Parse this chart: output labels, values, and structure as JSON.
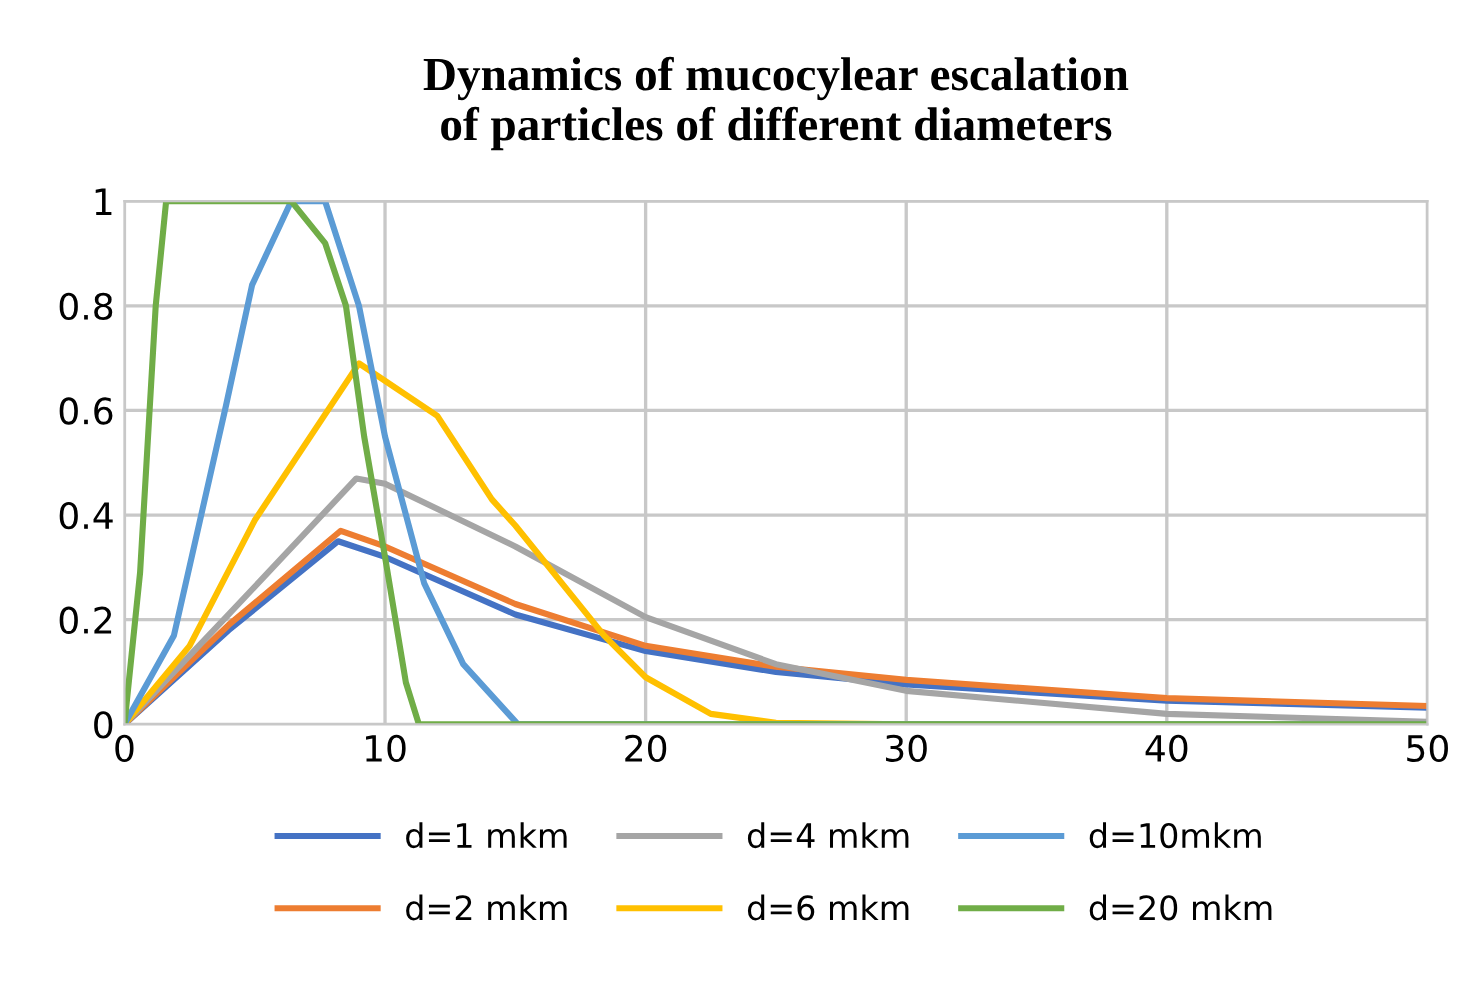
{
  "chart_data": {
    "type": "line",
    "title": "Dynamics of mucocylear escalation\nof particles of different diameters",
    "xlim": [
      0,
      50
    ],
    "xticks": [
      0,
      10,
      20,
      30,
      40,
      50
    ],
    "ylim": [
      0,
      1
    ],
    "yticks": [
      0,
      0.2,
      0.4,
      0.6,
      0.8,
      1
    ],
    "grid": true,
    "legend": "bottom",
    "marker": "none",
    "line_style": "solid",
    "series": [
      {
        "name": "d=1 mkm",
        "color": "#4472c4",
        "x": [
          0,
          4,
          8.2,
          10,
          15,
          20,
          25,
          30,
          40,
          50
        ],
        "values": [
          0,
          0.18,
          0.35,
          0.32,
          0.21,
          0.14,
          0.1,
          0.076,
          0.045,
          0.032
        ]
      },
      {
        "name": "d=2 mkm",
        "color": "#ed7d31",
        "x": [
          0,
          4,
          8.3,
          10,
          15,
          20,
          25,
          30,
          40,
          50
        ],
        "values": [
          0,
          0.19,
          0.37,
          0.34,
          0.23,
          0.15,
          0.11,
          0.085,
          0.05,
          0.035
        ]
      },
      {
        "name": "d=4 mkm",
        "color": "#a5a5a5",
        "x": [
          0,
          4,
          8.9,
          10,
          15,
          20,
          25,
          30,
          40,
          50
        ],
        "values": [
          0,
          0.21,
          0.47,
          0.46,
          0.34,
          0.205,
          0.115,
          0.064,
          0.02,
          0.005
        ]
      },
      {
        "name": "d=6 mkm",
        "color": "#ffc000",
        "x": [
          0,
          2.5,
          5,
          9,
          12,
          14.1,
          15,
          18.4,
          20,
          22.5,
          25,
          30,
          50
        ],
        "values": [
          0,
          0.15,
          0.39,
          0.69,
          0.59,
          0.43,
          0.38,
          0.17,
          0.09,
          0.02,
          0.003,
          0,
          0
        ]
      },
      {
        "name": "d=10mkm",
        "color": "#5b9bd5",
        "x": [
          0,
          1.9,
          3.9,
          4.9,
          6.4,
          7.7,
          9,
          10,
          11.5,
          13,
          15.1,
          50
        ],
        "values": [
          0,
          0.17,
          0.61,
          0.84,
          1,
          1,
          0.8,
          0.55,
          0.27,
          0.115,
          0,
          0
        ]
      },
      {
        "name": "d=20 mkm",
        "color": "#70ad47",
        "x": [
          0,
          0.6,
          1.2,
          1.6,
          6.4,
          7.7,
          8.5,
          9.2,
          10,
          10.8,
          11.3,
          50
        ],
        "values": [
          0,
          0.29,
          0.8,
          1,
          1,
          0.92,
          0.8,
          0.55,
          0.32,
          0.08,
          0,
          0
        ]
      }
    ]
  }
}
